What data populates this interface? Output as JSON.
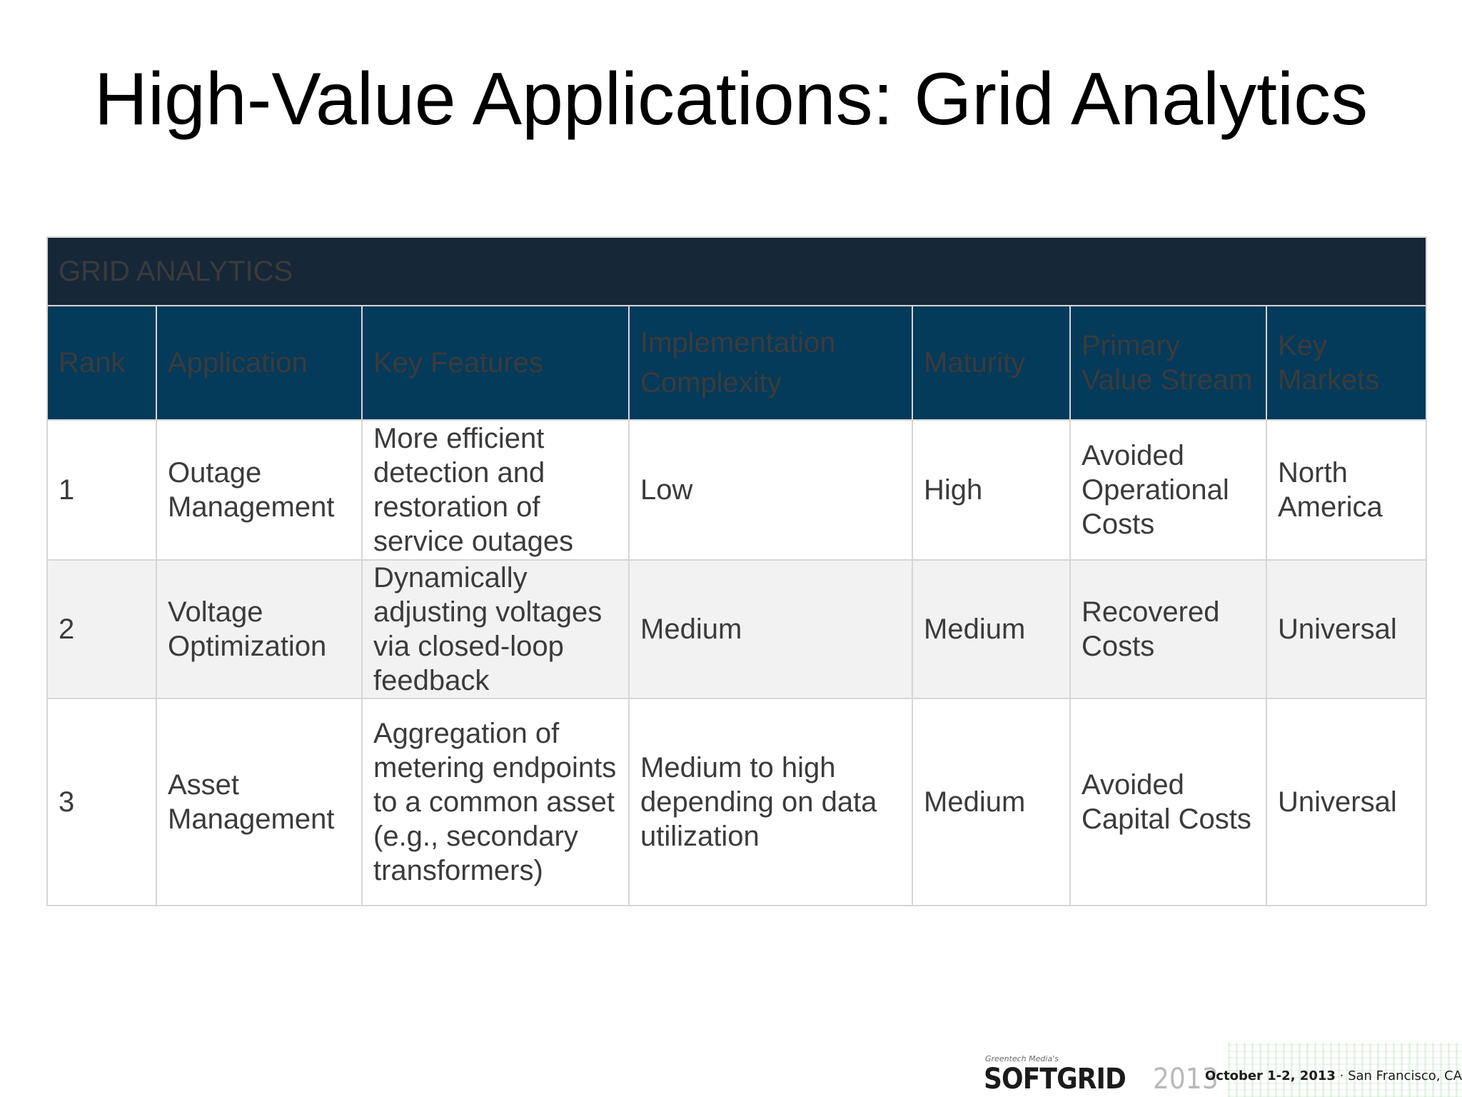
{
  "slide": {
    "title": "High-Value Applications: Grid Analytics"
  },
  "table": {
    "section_title": "GRID ANALYTICS",
    "headers": [
      [
        "Rank"
      ],
      [
        "Application"
      ],
      [
        "Key Features"
      ],
      [
        "Implementation",
        "Complexity"
      ],
      [
        "Maturity"
      ],
      [
        "Primary",
        "Value Stream"
      ],
      [
        "Key",
        "Markets"
      ]
    ],
    "rows": [
      {
        "rank": "1",
        "application": [
          "Outage",
          "Management"
        ],
        "key_features": [
          "More efficient",
          "detection and",
          "restoration of",
          "service outages"
        ],
        "complexity": [
          "Low"
        ],
        "maturity": "High",
        "value_stream": [
          "Avoided",
          "Operational",
          "Costs"
        ],
        "markets": [
          "North",
          "America"
        ]
      },
      {
        "rank": "2",
        "application": [
          "Voltage",
          "Optimization"
        ],
        "key_features": [
          "Dynamically",
          "adjusting voltages",
          "via closed-loop",
          "feedback"
        ],
        "complexity": [
          "Medium"
        ],
        "maturity": "Medium",
        "value_stream": [
          "Recovered",
          "Costs"
        ],
        "markets": [
          "Universal"
        ]
      },
      {
        "rank": "3",
        "application": [
          "Asset",
          "Management"
        ],
        "key_features": [
          "Aggregation of",
          "metering endpoints",
          "to a common asset",
          "(e.g., secondary",
          "transformers)"
        ],
        "complexity": [
          "Medium to high",
          "depending on data",
          "utilization"
        ],
        "maturity": "Medium",
        "value_stream": [
          "Avoided",
          "Capital Costs"
        ],
        "markets": [
          "Universal"
        ]
      }
    ]
  },
  "footer": {
    "logo_tagline": "Greentech Media's",
    "logo_name": "SOFTGRID",
    "logo_year": "2013",
    "event_date": "October 1-2, 2013",
    "event_separator": " · ",
    "event_place": "San Francisco, CA"
  }
}
